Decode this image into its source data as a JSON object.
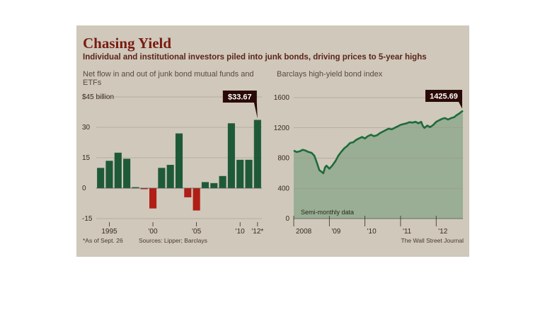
{
  "title": "Chasing Yield",
  "subtitle": "Individual and institutional investors piled into junk bonds, driving prices to 5-year highs",
  "footnote": "*As of Sept. 26",
  "sources": "Sources: Lipper; Barclays",
  "credit": "The Wall Street Journal",
  "colors": {
    "positive": "#1f5a38",
    "negative": "#b01e16",
    "line": "#1e6b3a",
    "area": "#8fa98e",
    "callout": "#2a0a06"
  },
  "chart_data": [
    {
      "type": "bar",
      "title": "Net flow in and out of junk bond mutual funds and ETFs",
      "ylim": [
        -15,
        45
      ],
      "y_ticks": [
        45,
        30,
        15,
        0,
        -15
      ],
      "y_tick_labels": [
        "$45 billion",
        "30",
        "15",
        "0",
        "-15"
      ],
      "x_tick_labels": [
        "1995",
        "'00",
        "'05",
        "'10",
        "'12*"
      ],
      "x_tick_years": [
        1995,
        2000,
        2005,
        2010,
        2012
      ],
      "categories": [
        1994,
        1995,
        1996,
        1997,
        1998,
        1999,
        2000,
        2001,
        2002,
        2003,
        2004,
        2005,
        2006,
        2007,
        2008,
        2009,
        2010,
        2011,
        2012
      ],
      "values": [
        10,
        13.5,
        17.5,
        14.5,
        0.5,
        -0.5,
        -10,
        10,
        11.5,
        27,
        -4.5,
        -11,
        3,
        2.5,
        6,
        32,
        14,
        14,
        33.67
      ],
      "callout": "$33.67",
      "grid": true
    },
    {
      "type": "area",
      "title": "Barclays high-yield bond index",
      "ylim": [
        0,
        1600
      ],
      "y_ticks": [
        1600,
        1200,
        800,
        400,
        0
      ],
      "y_tick_labels": [
        "1600",
        "1200",
        "800",
        "400",
        "0"
      ],
      "x_range": [
        2008,
        2012.75
      ],
      "x_tick_labels": [
        "2008",
        "'09",
        "'10",
        "'11",
        "'12"
      ],
      "x_tick_years": [
        2008,
        2009,
        2010,
        2011,
        2012
      ],
      "note": "Semi-monthly data",
      "callout": "1425.69",
      "x": [
        2008,
        2008.08,
        2008.17,
        2008.25,
        2008.33,
        2008.42,
        2008.5,
        2008.58,
        2008.65,
        2008.72,
        2008.78,
        2008.83,
        2008.88,
        2008.92,
        2008.96,
        2009,
        2009.08,
        2009.17,
        2009.25,
        2009.33,
        2009.42,
        2009.5,
        2009.58,
        2009.67,
        2009.75,
        2009.83,
        2009.92,
        2010,
        2010.08,
        2010.17,
        2010.25,
        2010.33,
        2010.42,
        2010.5,
        2010.58,
        2010.67,
        2010.75,
        2010.83,
        2010.92,
        2011,
        2011.08,
        2011.17,
        2011.25,
        2011.33,
        2011.42,
        2011.5,
        2011.58,
        2011.62,
        2011.67,
        2011.75,
        2011.83,
        2011.92,
        2012,
        2012.08,
        2012.17,
        2012.25,
        2012.33,
        2012.42,
        2012.5,
        2012.58,
        2012.65,
        2012.7,
        2012.75
      ],
      "y": [
        900,
        880,
        890,
        910,
        900,
        880,
        870,
        830,
        740,
        640,
        620,
        600,
        680,
        700,
        680,
        660,
        700,
        760,
        830,
        880,
        930,
        960,
        1000,
        1010,
        1040,
        1060,
        1080,
        1060,
        1090,
        1110,
        1090,
        1100,
        1130,
        1150,
        1170,
        1190,
        1180,
        1200,
        1220,
        1240,
        1250,
        1260,
        1275,
        1270,
        1280,
        1260,
        1280,
        1230,
        1200,
        1230,
        1210,
        1240,
        1280,
        1300,
        1320,
        1330,
        1310,
        1330,
        1340,
        1370,
        1390,
        1410,
        1425.69
      ],
      "grid": true
    }
  ]
}
